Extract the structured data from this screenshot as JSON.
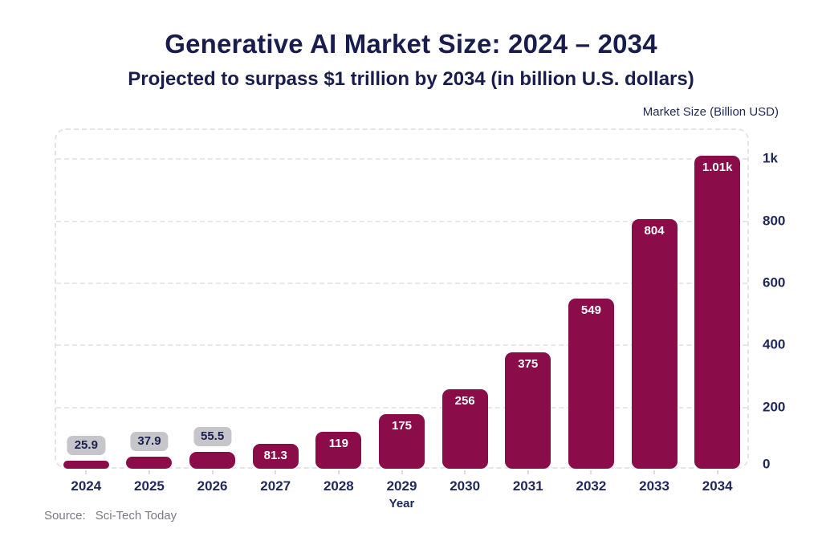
{
  "page": {
    "title": "Generative AI Market Size: 2024 – 2034",
    "subtitle": "Projected to surpass $1 trillion by 2034 (in billion U.S. dollars)",
    "source_label": "Source:",
    "source_value": "Sci-Tech Today"
  },
  "chart_data": {
    "type": "bar",
    "title": "Generative AI Market Size: 2024 – 2034",
    "subtitle": "Projected to surpass $1 trillion by 2034 (in billion U.S. dollars)",
    "xlabel": "Year",
    "ylabel": "Market Size (Billion USD)",
    "categories": [
      "2024",
      "2025",
      "2026",
      "2027",
      "2028",
      "2029",
      "2030",
      "2031",
      "2032",
      "2033",
      "2034"
    ],
    "values": [
      25.9,
      37.9,
      55.5,
      81.3,
      119,
      175,
      256,
      375,
      549,
      804,
      1010
    ],
    "value_labels": [
      "25.9",
      "37.9",
      "55.5",
      "81.3",
      "119",
      "175",
      "256",
      "375",
      "549",
      "804",
      "1.01k"
    ],
    "label_placement": [
      "above",
      "above",
      "above",
      "inside",
      "inside",
      "inside",
      "inside",
      "inside",
      "inside",
      "inside",
      "inside"
    ],
    "ylim": [
      0,
      1097
    ],
    "yticks": [
      {
        "value": 0,
        "label": "0"
      },
      {
        "value": 200,
        "label": "200"
      },
      {
        "value": 400,
        "label": "400"
      },
      {
        "value": 600,
        "label": "600"
      },
      {
        "value": 800,
        "label": "800"
      },
      {
        "value": 1000,
        "label": "1k"
      }
    ],
    "grid": "horizontal-dashed",
    "legend": false,
    "colors": {
      "bar": "#8A0D49",
      "title_text": "#191D4D",
      "axis_text": "#21295A",
      "label_chip_bg": "#C5C5CA",
      "grid_line": "#E7E7EB",
      "source_text": "#7A7A82",
      "background": "#FFFFFF"
    }
  }
}
